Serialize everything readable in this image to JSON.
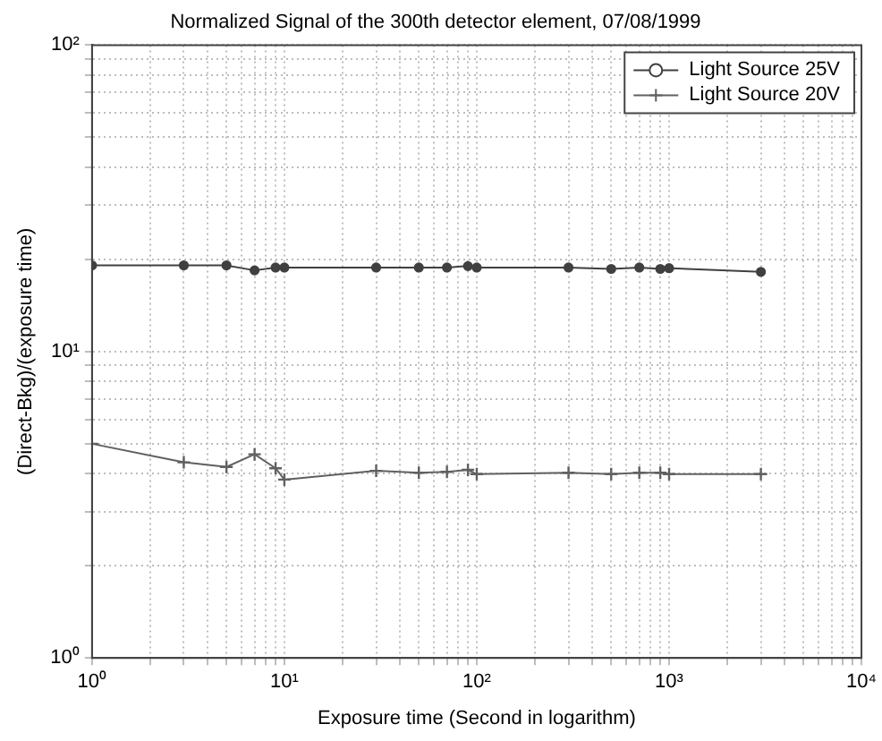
{
  "chart_data": {
    "type": "line",
    "title": "Normalized Signal of the 300th detector element, 07/08/1999",
    "xlabel": "Exposure time (Second in logarithm)",
    "ylabel": "(Direct-Bkg)/(exposure time)",
    "log": "xy",
    "grid": true,
    "legend": "top right",
    "line_style": "solid",
    "x": [
      1,
      3,
      5,
      7,
      9,
      10,
      30,
      50,
      70,
      90,
      100,
      300,
      500,
      700,
      900,
      1000,
      3000
    ],
    "xlim": [
      1,
      10000
    ],
    "ylim": [
      1,
      100
    ],
    "xticks": [
      {
        "value": 1,
        "label": "10⁰"
      },
      {
        "value": 2,
        "label": null
      },
      {
        "value": 3,
        "label": null
      },
      {
        "value": 4,
        "label": null
      },
      {
        "value": 5,
        "label": null
      },
      {
        "value": 6,
        "label": null
      },
      {
        "value": 7,
        "label": null
      },
      {
        "value": 8,
        "label": null
      },
      {
        "value": 9,
        "label": null
      },
      {
        "value": 10,
        "label": "10¹"
      },
      {
        "value": 20,
        "label": null
      },
      {
        "value": 30,
        "label": null
      },
      {
        "value": 40,
        "label": null
      },
      {
        "value": 50,
        "label": null
      },
      {
        "value": 60,
        "label": null
      },
      {
        "value": 70,
        "label": null
      },
      {
        "value": 80,
        "label": null
      },
      {
        "value": 90,
        "label": null
      },
      {
        "value": 100,
        "label": "10²"
      },
      {
        "value": 200,
        "label": null
      },
      {
        "value": 300,
        "label": null
      },
      {
        "value": 400,
        "label": null
      },
      {
        "value": 500,
        "label": null
      },
      {
        "value": 600,
        "label": null
      },
      {
        "value": 700,
        "label": null
      },
      {
        "value": 800,
        "label": null
      },
      {
        "value": 900,
        "label": null
      },
      {
        "value": 1000,
        "label": "10³"
      },
      {
        "value": 2000,
        "label": null
      },
      {
        "value": 3000,
        "label": null
      },
      {
        "value": 4000,
        "label": null
      },
      {
        "value": 5000,
        "label": null
      },
      {
        "value": 6000,
        "label": null
      },
      {
        "value": 7000,
        "label": null
      },
      {
        "value": 8000,
        "label": null
      },
      {
        "value": 9000,
        "label": null
      },
      {
        "value": 10000,
        "label": "10⁴"
      }
    ],
    "yticks": [
      {
        "value": 1,
        "label": "10⁰"
      },
      {
        "value": 2,
        "label": null
      },
      {
        "value": 3,
        "label": null
      },
      {
        "value": 4,
        "label": null
      },
      {
        "value": 5,
        "label": null
      },
      {
        "value": 6,
        "label": null
      },
      {
        "value": 7,
        "label": null
      },
      {
        "value": 8,
        "label": null
      },
      {
        "value": 9,
        "label": null
      },
      {
        "value": 10,
        "label": "10¹"
      },
      {
        "value": 20,
        "label": null
      },
      {
        "value": 30,
        "label": null
      },
      {
        "value": 40,
        "label": null
      },
      {
        "value": 50,
        "label": null
      },
      {
        "value": 60,
        "label": null
      },
      {
        "value": 70,
        "label": null
      },
      {
        "value": 80,
        "label": null
      },
      {
        "value": 90,
        "label": null
      },
      {
        "value": 100,
        "label": "10²"
      }
    ],
    "series": [
      {
        "name": "Light Source 25V",
        "color": "#404040",
        "marker": "circle",
        "values": [
          19.1,
          19.1,
          19.1,
          18.4,
          18.8,
          18.8,
          18.8,
          18.8,
          18.8,
          19.0,
          18.8,
          18.8,
          18.6,
          18.8,
          18.6,
          18.7,
          18.2
        ]
      },
      {
        "name": "Light Source 20V",
        "color": "#606060",
        "marker": "cross",
        "values": [
          5.0,
          4.35,
          4.2,
          4.62,
          4.16,
          3.82,
          4.08,
          4.02,
          4.05,
          4.11,
          3.98,
          4.02,
          3.98,
          4.02,
          4.02,
          3.98,
          3.98
        ]
      }
    ]
  }
}
